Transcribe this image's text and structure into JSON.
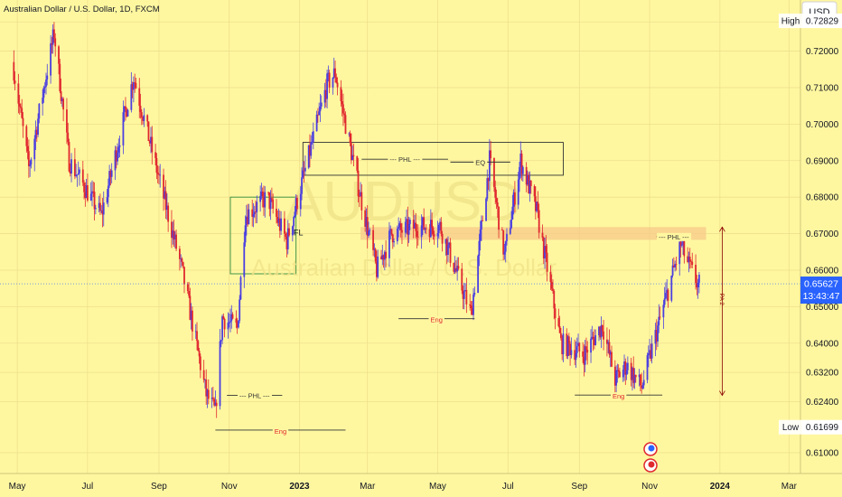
{
  "header": {
    "title": "Australian Dollar / U.S. Dollar, 1D, FXCM"
  },
  "watermark": {
    "symbol": "AUDUSD",
    "name": "Australian Dollar / U.S. Dollar"
  },
  "price_axis": {
    "currency": "USD",
    "high_label": "High",
    "high_value": "0.72829",
    "low_label": "Low",
    "low_value": "0.61699",
    "last_value": "0.65627",
    "countdown": "13:43:47"
  },
  "colors": {
    "background": "#fff7a0",
    "up": "#4a3fe0",
    "down": "#e0282f",
    "zone": "#f7c98a",
    "last_price": "#2962ff"
  },
  "chart_data": {
    "type": "candlestick",
    "title": "Australian Dollar / U.S. Dollar, 1D, FXCM",
    "ylim": [
      0.6043,
      0.734
    ],
    "ytick_values": [
      0.61,
      0.624,
      0.632,
      0.64,
      0.65,
      0.66,
      0.67,
      0.68,
      0.69,
      0.7,
      0.71,
      0.72,
      0.728
    ],
    "yticks": [
      "0.61000",
      "0.62400",
      "0.63200",
      "0.64000",
      "0.65000",
      "0.66000",
      "0.67000",
      "0.68000",
      "0.69000",
      "0.70000",
      "0.71000",
      "0.72000",
      "0.72800"
    ],
    "xticks": [
      {
        "label": "May",
        "date": "2022-05-01",
        "bold": false
      },
      {
        "label": "Jul",
        "date": "2022-07-01",
        "bold": false
      },
      {
        "label": "Sep",
        "date": "2022-09-01",
        "bold": false
      },
      {
        "label": "Nov",
        "date": "2022-11-01",
        "bold": false
      },
      {
        "label": "2023",
        "date": "2023-01-01",
        "bold": true
      },
      {
        "label": "Mar",
        "date": "2023-03-01",
        "bold": false
      },
      {
        "label": "May",
        "date": "2023-05-01",
        "bold": false
      },
      {
        "label": "Jul",
        "date": "2023-07-01",
        "bold": false
      },
      {
        "label": "Sep",
        "date": "2023-09-01",
        "bold": false
      },
      {
        "label": "Nov",
        "date": "2023-11-01",
        "bold": false
      },
      {
        "label": "2024",
        "date": "2024-01-01",
        "bold": true
      },
      {
        "label": "Mar",
        "date": "2024-03-01",
        "bold": false
      }
    ],
    "price_path": [
      [
        "2022-04-28",
        0.717
      ],
      [
        "2022-05-12",
        0.688
      ],
      [
        "2022-06-03",
        0.725
      ],
      [
        "2022-06-16",
        0.69
      ],
      [
        "2022-07-14",
        0.675
      ],
      [
        "2022-08-11",
        0.713
      ],
      [
        "2022-09-06",
        0.68
      ],
      [
        "2022-09-22",
        0.66
      ],
      [
        "2022-10-13",
        0.626
      ],
      [
        "2022-10-21",
        0.621
      ],
      [
        "2022-10-27",
        0.647
      ],
      [
        "2022-11-09",
        0.644
      ],
      [
        "2022-11-16",
        0.675
      ],
      [
        "2022-12-05",
        0.68
      ],
      [
        "2022-12-22",
        0.668
      ],
      [
        "2023-01-09",
        0.69
      ],
      [
        "2023-01-26",
        0.711
      ],
      [
        "2023-02-02",
        0.714
      ],
      [
        "2023-02-22",
        0.683
      ],
      [
        "2023-03-10",
        0.66
      ],
      [
        "2023-03-23",
        0.67
      ],
      [
        "2023-04-14",
        0.672
      ],
      [
        "2023-05-04",
        0.672
      ],
      [
        "2023-05-31",
        0.648
      ],
      [
        "2023-06-16",
        0.69
      ],
      [
        "2023-06-29",
        0.664
      ],
      [
        "2023-07-13",
        0.69
      ],
      [
        "2023-07-27",
        0.676
      ],
      [
        "2023-08-17",
        0.64
      ],
      [
        "2023-09-06",
        0.637
      ],
      [
        "2023-09-22",
        0.645
      ],
      [
        "2023-10-03",
        0.63
      ],
      [
        "2023-10-13",
        0.634
      ],
      [
        "2023-10-26",
        0.628
      ],
      [
        "2023-11-14",
        0.65
      ],
      [
        "2023-11-29",
        0.667
      ],
      [
        "2023-12-05",
        0.662
      ],
      [
        "2023-12-14",
        0.656
      ]
    ],
    "zones": [
      {
        "start": "2022-11-02",
        "end": "2022-12-29",
        "high": 0.68,
        "low": 0.659,
        "color": "#2f8a3d",
        "fill": "none"
      },
      {
        "start": "2023-01-04",
        "end": "2023-08-18",
        "high": 0.695,
        "low": 0.686,
        "color": "#333333",
        "fill": "none"
      },
      {
        "start": "2023-02-23",
        "end": "2023-12-20",
        "high": 0.6718,
        "low": 0.6683,
        "color": "#f7c98a",
        "fill": "solid"
      }
    ],
    "levels": [
      {
        "label": "--- PHL ---",
        "start": "2022-10-30",
        "end": "2022-12-17",
        "price": 0.6257,
        "color": "#333333"
      },
      {
        "label": "--- PHL ---",
        "start": "2023-02-24",
        "end": "2023-05-10",
        "price": 0.6904,
        "color": "#333333"
      },
      {
        "label": "--- PHL ---",
        "start": "2023-11-07",
        "end": "2023-12-07",
        "price": 0.6692,
        "color": "#333333"
      },
      {
        "label": "EQ",
        "start": "2023-05-12",
        "end": "2023-07-03",
        "price": 0.6896,
        "color": "#333333"
      },
      {
        "label": "Eng",
        "start": "2022-10-20",
        "end": "2023-02-10",
        "price": 0.6162,
        "color": "#e0282f"
      },
      {
        "label": "Eng",
        "start": "2023-03-28",
        "end": "2023-06-02",
        "price": 0.6467,
        "color": "#e0282f"
      },
      {
        "label": "Eng",
        "start": "2023-08-28",
        "end": "2023-11-12",
        "price": 0.6258,
        "color": "#e0282f"
      }
    ],
    "annotations": [
      {
        "text": "FL",
        "date": "2022-12-31",
        "price": 0.6695
      },
      {
        "text": "PA 2",
        "date": "2024-01-01",
        "price": 0.652,
        "vertical": true
      }
    ],
    "range_arrow": {
      "date": "2024-01-03",
      "high": 0.6718,
      "low": 0.6257,
      "color": "#8b0000"
    }
  }
}
